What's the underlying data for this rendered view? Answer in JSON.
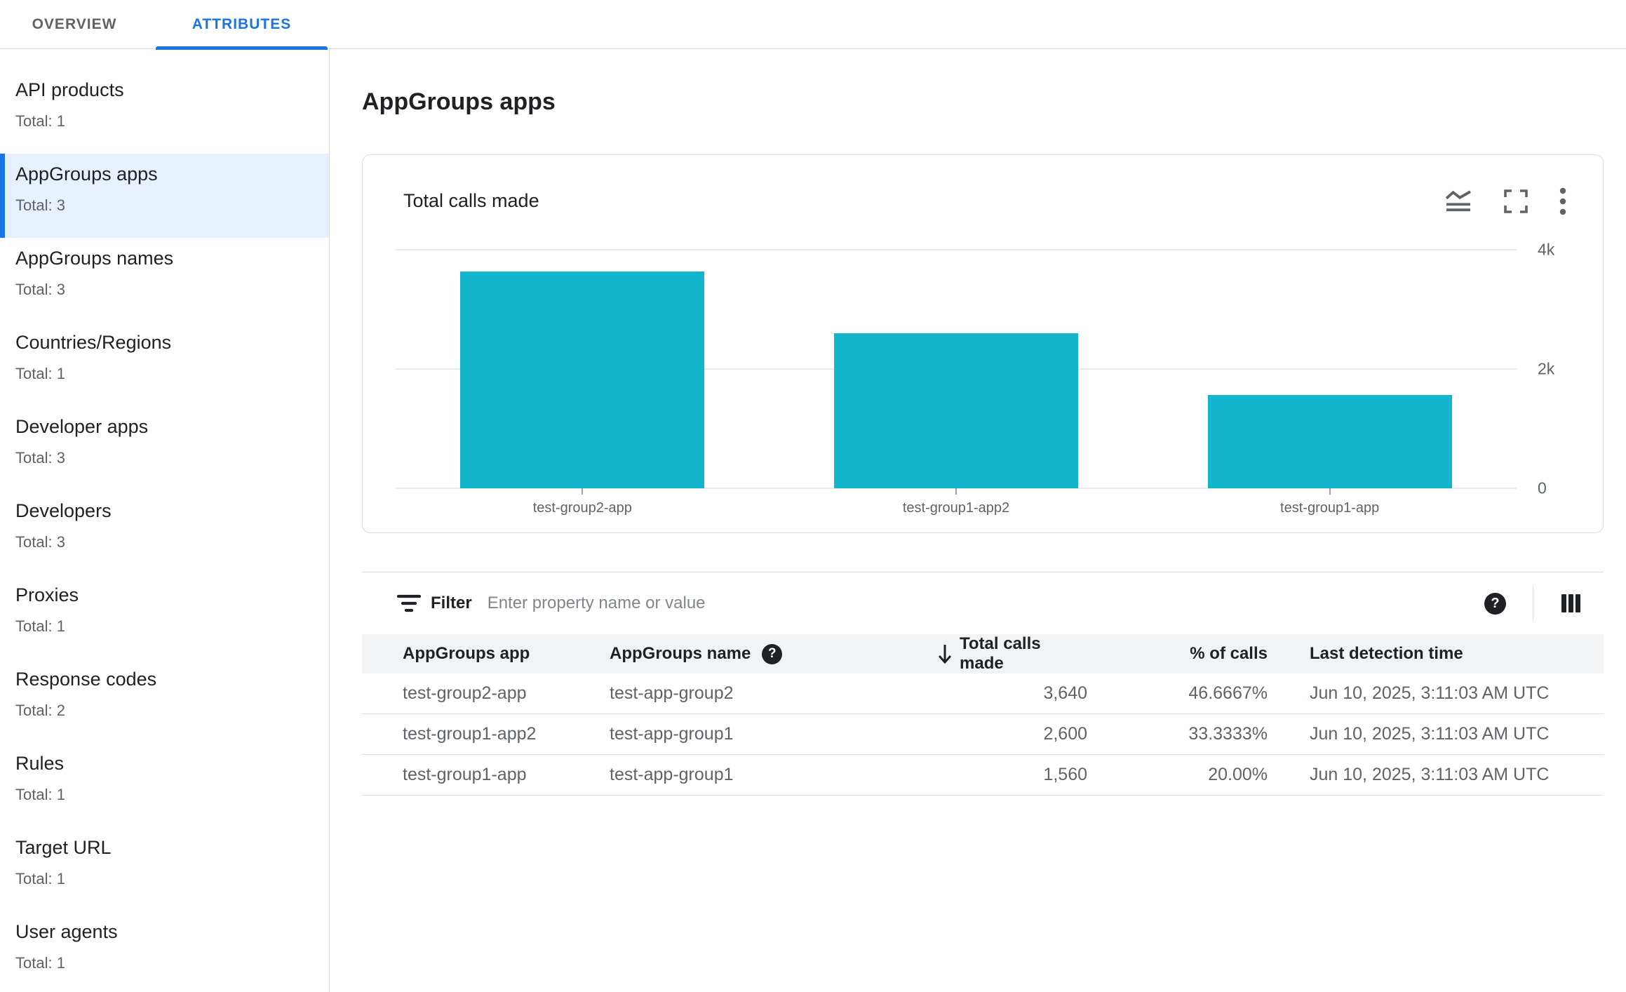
{
  "tabs": [
    {
      "label": "OVERVIEW",
      "active": false
    },
    {
      "label": "ATTRIBUTES",
      "active": true
    }
  ],
  "sidebar": {
    "selected_index": 1,
    "items": [
      {
        "label": "API products",
        "total": "Total: 1"
      },
      {
        "label": "AppGroups apps",
        "total": "Total: 3"
      },
      {
        "label": "AppGroups names",
        "total": "Total: 3"
      },
      {
        "label": "Countries/Regions",
        "total": "Total: 1"
      },
      {
        "label": "Developer apps",
        "total": "Total: 3"
      },
      {
        "label": "Developers",
        "total": "Total: 3"
      },
      {
        "label": "Proxies",
        "total": "Total: 1"
      },
      {
        "label": "Response codes",
        "total": "Total: 2"
      },
      {
        "label": "Rules",
        "total": "Total: 1"
      },
      {
        "label": "Target URL",
        "total": "Total: 1"
      },
      {
        "label": "User agents",
        "total": "Total: 1"
      }
    ]
  },
  "page_title": "AppGroups apps",
  "chart_card": {
    "title": "Total calls made",
    "icons": [
      "stacked-line-chart",
      "fullscreen",
      "more-vert"
    ]
  },
  "chart_data": {
    "type": "bar",
    "title": "Total calls made",
    "categories": [
      "test-group2-app",
      "test-group1-app2",
      "test-group1-app"
    ],
    "values": [
      3640,
      2600,
      1560
    ],
    "ylim": [
      0,
      4000
    ],
    "yticks": [
      {
        "value": 4000,
        "label": "4k"
      },
      {
        "value": 2000,
        "label": "2k"
      },
      {
        "value": 0,
        "label": "0"
      }
    ],
    "grid": true,
    "legend": false,
    "bar_color": "#12b5cb",
    "yaxis_position": "right"
  },
  "filter": {
    "label": "Filter",
    "placeholder": "Enter property name or value",
    "value": ""
  },
  "glyphs": {
    "help": "?"
  },
  "table": {
    "columns": [
      "AppGroups app",
      "AppGroups name",
      "Total calls made",
      "% of calls",
      "Last detection time"
    ],
    "sort_column": "Total calls made",
    "sort_direction": "desc",
    "rows": [
      [
        "test-group2-app",
        "test-app-group2",
        "3,640",
        "46.6667%",
        "Jun 10, 2025, 3:11:03 AM UTC"
      ],
      [
        "test-group1-app2",
        "test-app-group1",
        "2,600",
        "33.3333%",
        "Jun 10, 2025, 3:11:03 AM UTC"
      ],
      [
        "test-group1-app",
        "test-app-group1",
        "1,560",
        "20.00%",
        "Jun 10, 2025, 3:11:03 AM UTC"
      ]
    ]
  },
  "colors": {
    "accent": "#1a73e8",
    "selected_bg": "#e8f0fe",
    "bar": "#12b5cb",
    "border": "#dadce0",
    "text_primary": "#202124",
    "text_secondary": "#5f6368"
  }
}
